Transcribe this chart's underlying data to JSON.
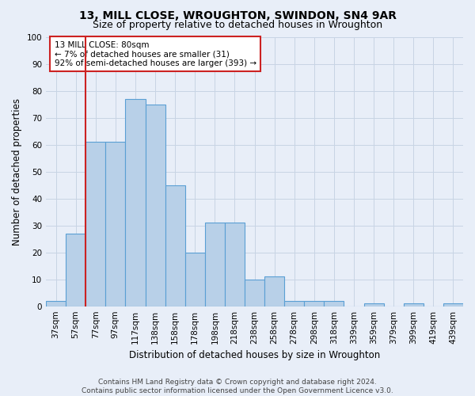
{
  "title": "13, MILL CLOSE, WROUGHTON, SWINDON, SN4 9AR",
  "subtitle": "Size of property relative to detached houses in Wroughton",
  "xlabel": "Distribution of detached houses by size in Wroughton",
  "ylabel": "Number of detached properties",
  "bin_labels": [
    "37sqm",
    "57sqm",
    "77sqm",
    "97sqm",
    "117sqm",
    "138sqm",
    "158sqm",
    "178sqm",
    "198sqm",
    "218sqm",
    "238sqm",
    "258sqm",
    "278sqm",
    "298sqm",
    "318sqm",
    "339sqm",
    "359sqm",
    "379sqm",
    "399sqm",
    "419sqm",
    "439sqm"
  ],
  "bar_heights": [
    2,
    27,
    61,
    61,
    77,
    75,
    45,
    20,
    31,
    31,
    10,
    11,
    2,
    2,
    2,
    0,
    1,
    0,
    1,
    0,
    1
  ],
  "bar_color": "#b8d0e8",
  "bar_edge_color": "#5a9fd4",
  "highlight_line_color": "#cc2222",
  "annotation_text": "13 MILL CLOSE: 80sqm\n← 7% of detached houses are smaller (31)\n92% of semi-detached houses are larger (393) →",
  "annotation_box_color": "#ffffff",
  "annotation_box_edge_color": "#cc2222",
  "ylim": [
    0,
    100
  ],
  "yticks": [
    0,
    10,
    20,
    30,
    40,
    50,
    60,
    70,
    80,
    90,
    100
  ],
  "grid_color": "#c8d4e4",
  "background_color": "#e8eef8",
  "footer_text": "Contains HM Land Registry data © Crown copyright and database right 2024.\nContains public sector information licensed under the Open Government Licence v3.0.",
  "title_fontsize": 10,
  "subtitle_fontsize": 9,
  "xlabel_fontsize": 8.5,
  "ylabel_fontsize": 8.5,
  "tick_fontsize": 7.5,
  "annotation_fontsize": 7.5,
  "footer_fontsize": 6.5
}
